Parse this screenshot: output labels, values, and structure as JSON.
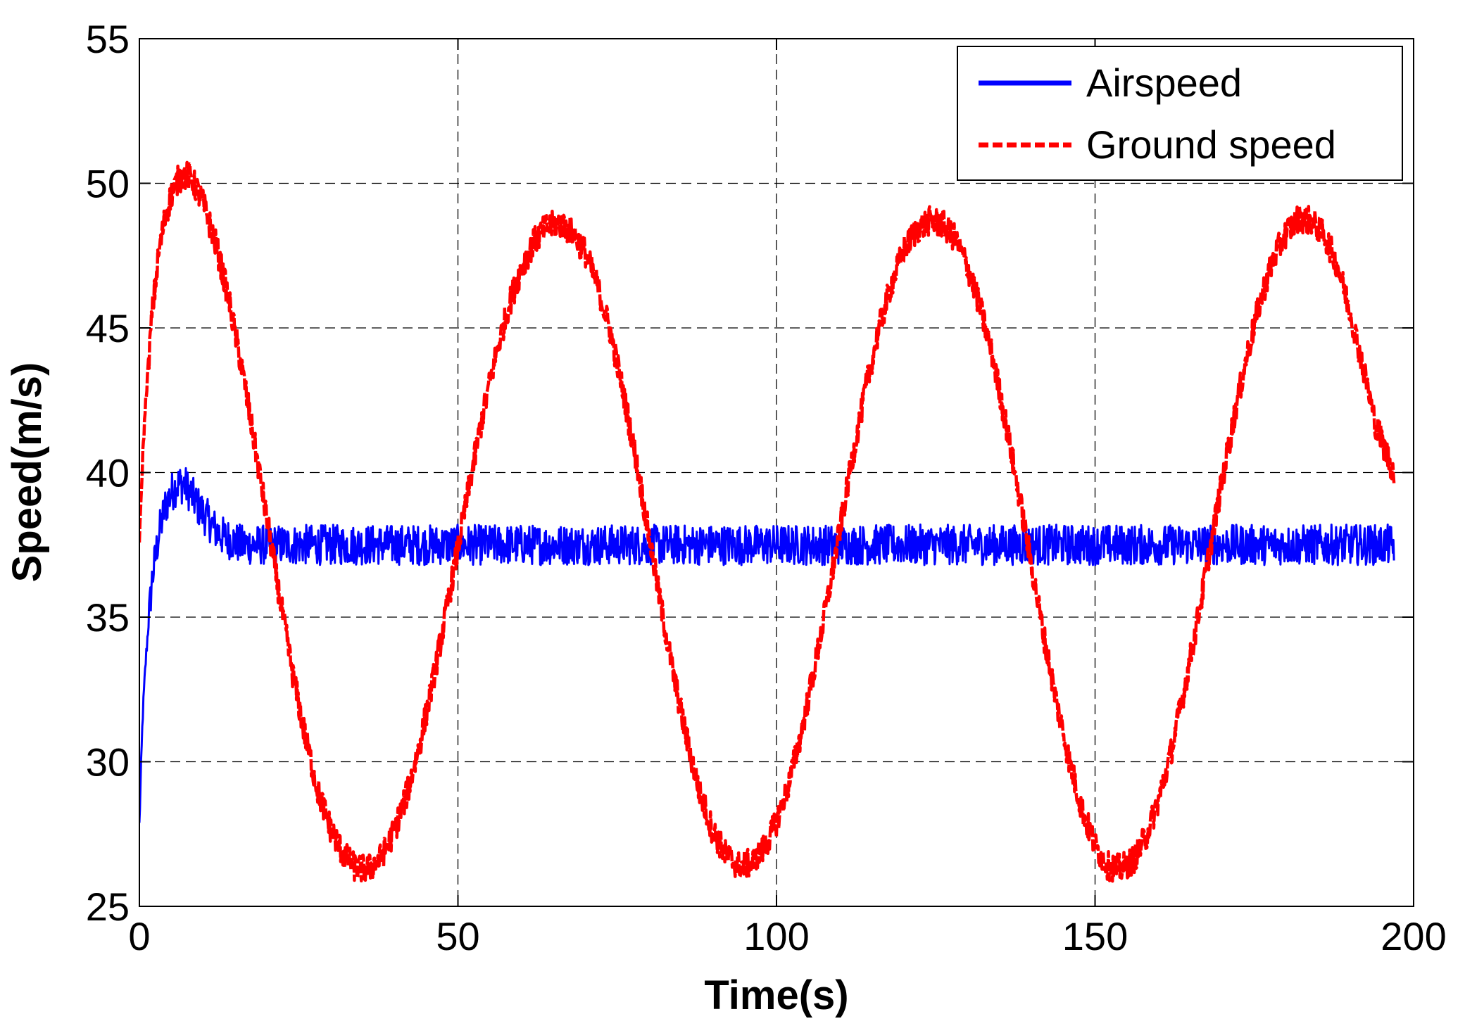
{
  "chart_data": {
    "type": "line",
    "title": "",
    "xlabel": "Time(s)",
    "ylabel": "Speed(m/s)",
    "xlim": [
      0,
      200
    ],
    "ylim": [
      25,
      55
    ],
    "xticks": [
      0,
      50,
      100,
      150,
      200
    ],
    "xtick_labels": [
      "0",
      "50",
      "100",
      "150",
      "200"
    ],
    "yticks": [
      25,
      30,
      35,
      40,
      45,
      50,
      55
    ],
    "ytick_labels": [
      "25",
      "30",
      "35",
      "40",
      "45",
      "50",
      "55"
    ],
    "grid": true,
    "legend_position": "top-right",
    "series": [
      {
        "name": "Airspeed",
        "color": "#0000ff",
        "style": "solid",
        "x": [
          0,
          0.5,
          1,
          1.5,
          2,
          3,
          4,
          5,
          6,
          7,
          8,
          9,
          10,
          11,
          12,
          13,
          14,
          15,
          16,
          18,
          20,
          25,
          30,
          40,
          50,
          60,
          70,
          80,
          90,
          100,
          110,
          120,
          130,
          140,
          150,
          160,
          170,
          180,
          190,
          197
        ],
        "y": [
          27.8,
          31.5,
          33.5,
          35.0,
          36.3,
          37.8,
          38.8,
          39.3,
          39.6,
          39.6,
          39.3,
          38.9,
          38.6,
          38.3,
          38.0,
          37.8,
          37.7,
          37.6,
          37.5,
          37.5,
          37.5,
          37.5,
          37.5,
          37.5,
          37.5,
          37.5,
          37.5,
          37.5,
          37.5,
          37.5,
          37.5,
          37.5,
          37.5,
          37.5,
          37.5,
          37.5,
          37.5,
          37.5,
          37.5,
          37.5
        ],
        "noise_amplitude": 0.7
      },
      {
        "name": "Ground speed",
        "color": "#ff0000",
        "style": "dashed",
        "x": [
          0,
          0.5,
          1,
          2,
          3,
          4,
          5,
          6,
          7,
          8,
          9,
          10,
          12,
          14,
          16,
          18,
          20,
          22,
          24,
          26,
          28,
          30,
          32,
          34,
          36,
          38,
          40,
          42,
          44,
          46,
          48,
          50,
          52,
          54,
          56,
          58,
          60,
          62,
          64,
          66,
          68,
          70,
          72,
          74,
          76,
          78,
          80,
          82,
          84,
          86,
          88,
          90,
          92,
          94,
          96,
          98,
          100,
          102,
          104,
          106,
          108,
          110,
          112,
          114,
          116,
          118,
          120,
          122,
          124,
          126,
          128,
          130,
          132,
          134,
          136,
          138,
          140,
          142,
          144,
          146,
          148,
          150,
          152,
          154,
          156,
          158,
          160,
          162,
          164,
          166,
          168,
          170,
          172,
          174,
          176,
          178,
          180,
          182,
          184,
          186,
          188,
          190,
          192,
          194,
          196,
          197
        ],
        "y": [
          37.5,
          40.5,
          42.5,
          45.5,
          47.5,
          48.8,
          49.6,
          50.1,
          50.3,
          50.2,
          49.8,
          49.3,
          47.9,
          46.0,
          43.7,
          41.1,
          38.4,
          35.7,
          33.1,
          30.9,
          29.0,
          27.7,
          26.8,
          26.3,
          26.3,
          26.7,
          27.6,
          28.9,
          30.6,
          32.7,
          35.0,
          37.4,
          39.8,
          42.1,
          44.1,
          45.8,
          47.1,
          48.0,
          48.5,
          48.6,
          48.3,
          47.6,
          46.4,
          44.8,
          42.7,
          40.4,
          37.8,
          35.2,
          32.8,
          30.7,
          28.9,
          27.6,
          26.8,
          26.4,
          26.5,
          27.0,
          27.9,
          29.3,
          31.1,
          33.3,
          35.6,
          38.1,
          40.6,
          42.9,
          44.9,
          46.5,
          47.7,
          48.4,
          48.7,
          48.6,
          48.1,
          47.1,
          45.7,
          43.9,
          41.7,
          39.3,
          36.8,
          34.3,
          32.0,
          30.0,
          28.3,
          27.1,
          26.4,
          26.3,
          26.6,
          27.4,
          28.7,
          30.4,
          32.5,
          34.8,
          37.3,
          39.8,
          42.1,
          44.2,
          46.0,
          47.4,
          48.3,
          48.8,
          48.7,
          48.2,
          47.2,
          45.6,
          43.7,
          41.7,
          40.5,
          40.0
        ],
        "noise_amplitude": 0.5
      }
    ]
  }
}
